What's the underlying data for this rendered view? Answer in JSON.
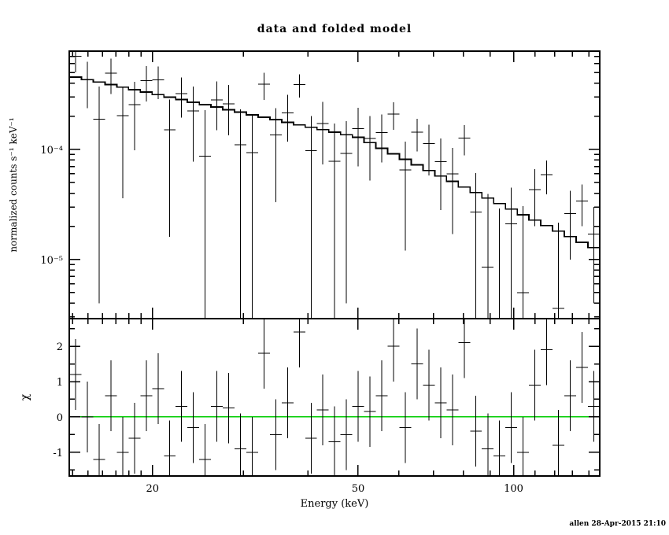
{
  "chart_data": {
    "type": "scatter",
    "title": "data and folded model",
    "xlabel": "Energy (keV)",
    "footer": "allen 28-Apr-2015 21:10",
    "xscale": "log",
    "xlim": [
      13.8,
      146.8
    ],
    "xticks": [
      20,
      50,
      100
    ],
    "colors": {
      "model": "#000000",
      "data": "#000000",
      "zero_line": "#00cc00",
      "background": "#ffffff",
      "frame": "#000000"
    },
    "legend": "none",
    "grid": "off",
    "panels": [
      {
        "name": "spectrum",
        "ylabel": "normalized counts s⁻¹ keV⁻¹",
        "yscale": "log",
        "ylim": [
          2.9e-06,
          0.00078
        ],
        "yticks": [
          {
            "value": 1e-05,
            "label": "10⁻⁵"
          },
          {
            "value": 0.0001,
            "label": "10⁻⁴"
          }
        ]
      },
      {
        "name": "residuals",
        "ylabel": "χ",
        "yscale": "linear",
        "ylim": [
          -1.67,
          2.78
        ],
        "yticks": [
          -1,
          0,
          1,
          2
        ],
        "yminors": [
          -1.5,
          -0.5,
          0.5,
          1.5,
          2.5
        ],
        "zero_line": 0
      }
    ],
    "energies": [
      14.2,
      14.96,
      15.76,
      16.62,
      17.51,
      18.45,
      19.45,
      20.5,
      21.6,
      22.76,
      23.99,
      25.29,
      26.64,
      28.08,
      29.59,
      31.19,
      32.87,
      34.64,
      36.52,
      38.49,
      40.55,
      42.73,
      45.04,
      47.47,
      50.03,
      52.72,
      55.56,
      58.56,
      61.7,
      65.04,
      68.55,
      72.24,
      76.12,
      80.26,
      84.55,
      89.13,
      93.93,
      99.0,
      104.31,
      109.94,
      115.87,
      122.12,
      128.7,
      135.64,
      142.95
    ],
    "model": [
      0.000454,
      0.00043,
      0.000409,
      0.000387,
      0.000368,
      0.000349,
      0.000331,
      0.000314,
      0.000298,
      0.000283,
      0.000268,
      0.000255,
      0.000242,
      0.000229,
      0.000218,
      0.000206,
      0.000196,
      0.000186,
      0.000176,
      0.000167,
      0.000159,
      0.000151,
      0.000143,
      0.000136,
      0.000129,
      0.000115,
      0.000102,
      9.09e-05,
      8.11e-05,
      7.22e-05,
      6.43e-05,
      5.73e-05,
      5.11e-05,
      4.55e-05,
      4.05e-05,
      3.61e-05,
      3.22e-05,
      2.87e-05,
      2.55e-05,
      2.28e-05,
      2.03e-05,
      1.81e-05,
      1.61e-05,
      1.43e-05,
      1.28e-05
    ],
    "counts": [
      0.000699,
      0.00043,
      0.000188,
      0.000492,
      0.000202,
      0.000255,
      0.00042,
      0.000427,
      0.00015,
      0.000321,
      0.000224,
      8.7e-05,
      0.000282,
      0.00026,
      0.00011,
      9.3e-05,
      0.00039,
      0.000135,
      0.000215,
      0.000387,
      9.7e-05,
      0.000171,
      7.8e-05,
      9.2e-05,
      0.000154,
      0.000126,
      0.000142,
      0.000209,
      6.5e-05,
      0.000143,
      0.000113,
      7.7e-05,
      6e-05,
      0.000127,
      2.7e-05,
      8.5e-06,
      2.1e-06,
      2.1e-05,
      5e-06,
      4.3e-05,
      5.9e-05,
      3.6e-06,
      2.6e-05,
      3.4e-05,
      1.7e-05
    ],
    "counts_err": [
      0.0002,
      0.000194,
      0.000184,
      0.000174,
      0.000166,
      0.000157,
      0.000149,
      0.000141,
      0.000134,
      0.000127,
      0.000147,
      0.00014,
      0.000133,
      0.000126,
      0.00012,
      0.000113,
      0.000108,
      0.000102,
      9.7e-05,
      9.2e-05,
      0.000103,
      9.8e-05,
      9.3e-05,
      8.8e-05,
      8.4e-05,
      7.4e-05,
      6.6e-05,
      5.9e-05,
      5.3e-05,
      4.7e-05,
      5.5e-05,
      4.9e-05,
      4.3e-05,
      3.9e-05,
      3.4e-05,
      3.1e-05,
      2.7e-05,
      2.4e-05,
      2.55e-05,
      2.3e-05,
      2e-05,
      1.8e-05,
      1.6e-05,
      1.4e-05,
      1.3e-05
    ],
    "chi": [
      1.2,
      0,
      -1.2,
      0.6,
      -1,
      -0.6,
      0.6,
      0.8,
      -1.1,
      0.3,
      -0.3,
      -1.2,
      0.3,
      0.25,
      -0.9,
      -1,
      1.8,
      -0.5,
      0.4,
      2.4,
      -0.6,
      0.2,
      -0.7,
      -0.5,
      0.3,
      0.15,
      0.6,
      2,
      -0.3,
      1.5,
      0.9,
      0.4,
      0.2,
      2.1,
      -0.4,
      -0.9,
      -1.1,
      -0.3,
      -1,
      0.9,
      1.9,
      -0.8,
      0.6,
      1.4,
      0.3
    ],
    "chi_err": 1.0
  }
}
